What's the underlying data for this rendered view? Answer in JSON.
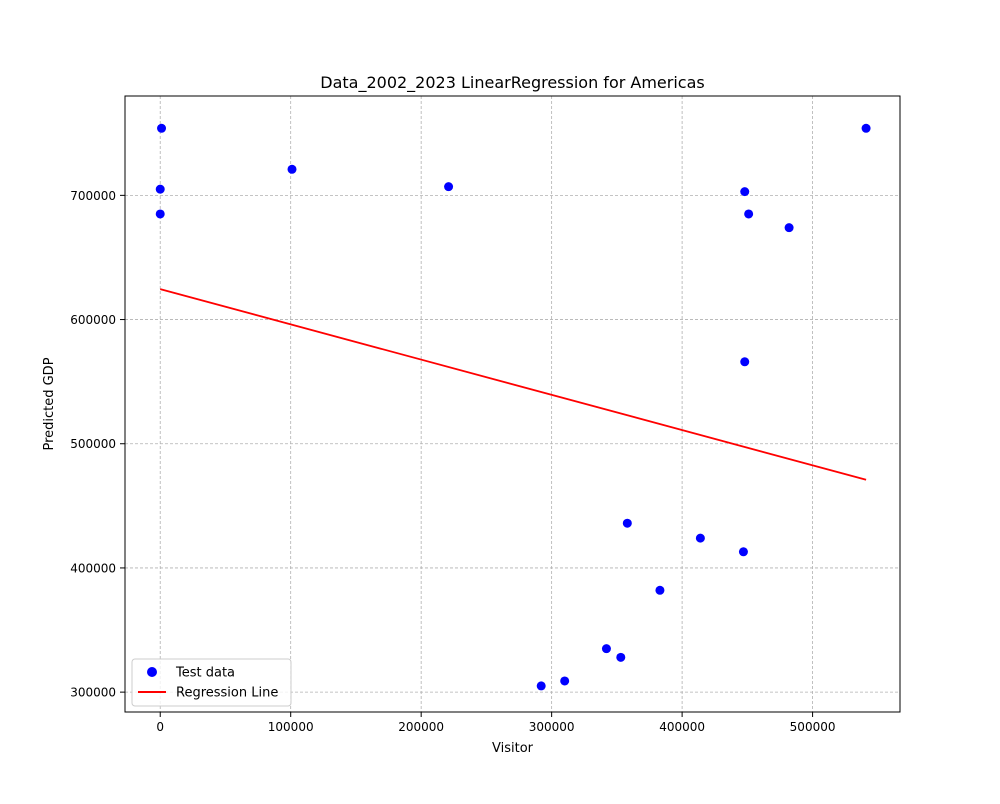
{
  "chart_data": {
    "type": "scatter",
    "title": "Data_2002_2023 LinearRegression for Americas",
    "xlabel": "Visitor",
    "ylabel": "Predicted GDP",
    "xlim": [
      -27000,
      567000
    ],
    "ylim": [
      284000,
      780000
    ],
    "xticks": [
      0,
      100000,
      200000,
      300000,
      400000,
      500000
    ],
    "yticks": [
      300000,
      400000,
      500000,
      600000,
      700000
    ],
    "grid": true,
    "legend_position": "bottom-left",
    "series": [
      {
        "name": "Test data",
        "type": "scatter",
        "color": "#0000ff",
        "points": [
          [
            1000,
            754000
          ],
          [
            0,
            705000
          ],
          [
            0,
            685000
          ],
          [
            101000,
            721000
          ],
          [
            221000,
            707000
          ],
          [
            448000,
            703000
          ],
          [
            451000,
            685000
          ],
          [
            482000,
            674000
          ],
          [
            541000,
            754000
          ],
          [
            448000,
            566000
          ],
          [
            358000,
            436000
          ],
          [
            414000,
            424000
          ],
          [
            447000,
            413000
          ],
          [
            383000,
            382000
          ],
          [
            342000,
            335000
          ],
          [
            353000,
            328000
          ],
          [
            310000,
            309000
          ],
          [
            292000,
            305000
          ]
        ]
      },
      {
        "name": "Regression Line",
        "type": "line",
        "color": "#ff0000",
        "points": [
          [
            0,
            624500
          ],
          [
            541000,
            471000
          ]
        ]
      }
    ]
  }
}
